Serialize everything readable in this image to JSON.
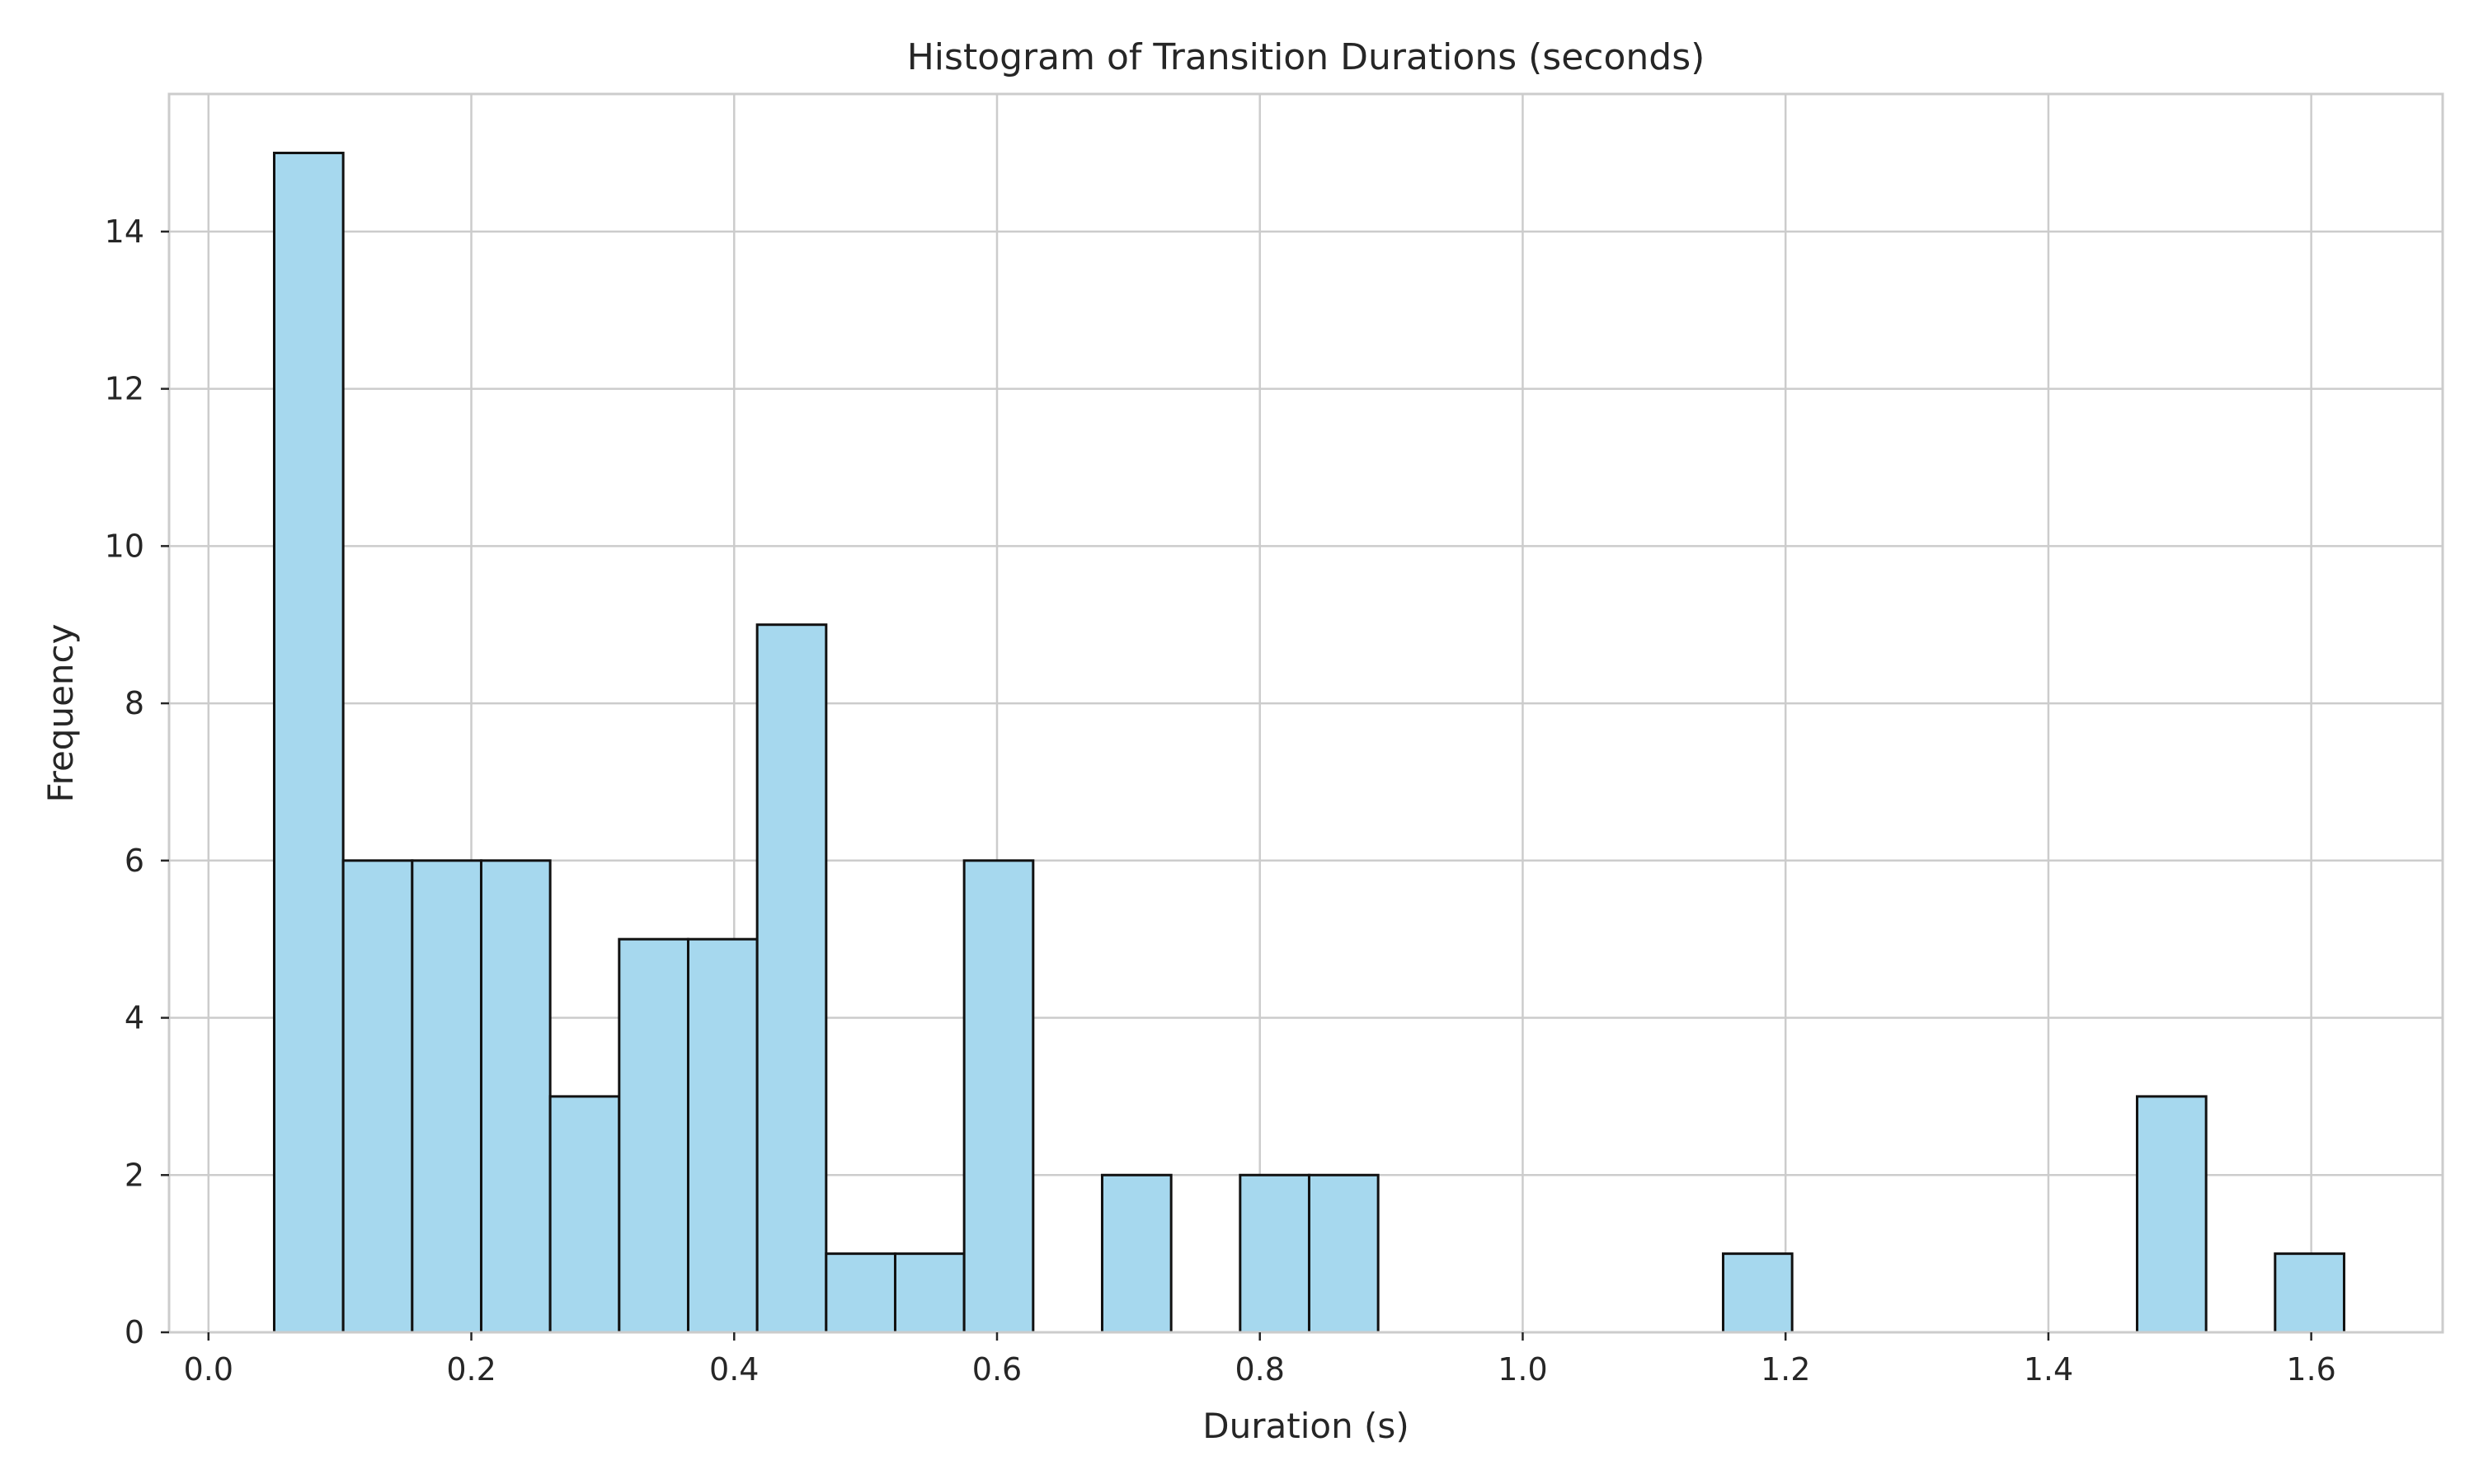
{
  "chart_data": {
    "type": "bar",
    "title": "Histogram of Transition Durations (seconds)",
    "xlabel": "Duration (s)",
    "ylabel": "Frequency",
    "xlim": [
      -0.03,
      1.7
    ],
    "ylim": [
      0,
      15.75
    ],
    "xticks": [
      0.0,
      0.2,
      0.4,
      0.6,
      0.8,
      1.0,
      1.2,
      1.4,
      1.6
    ],
    "xtick_labels": [
      "0.0",
      "0.2",
      "0.4",
      "0.6",
      "0.8",
      "1.0",
      "1.2",
      "1.4",
      "1.6"
    ],
    "yticks": [
      0,
      2,
      4,
      6,
      8,
      10,
      12,
      14
    ],
    "ytick_labels": [
      "0",
      "2",
      "4",
      "6",
      "8",
      "10",
      "12",
      "14"
    ],
    "grid": true,
    "bar_color": "#a6d8ee",
    "edge_color": "#111111",
    "bin_edges": [
      0.05,
      0.1025,
      0.155,
      0.2075,
      0.26,
      0.3125,
      0.365,
      0.4175,
      0.47,
      0.5225,
      0.575,
      0.6275,
      0.68,
      0.7325,
      0.785,
      0.8375,
      0.89,
      0.9425,
      0.995,
      1.0475,
      1.1,
      1.1525,
      1.205,
      1.2575,
      1.31,
      1.3625,
      1.415,
      1.4675,
      1.52,
      1.5725,
      1.625
    ],
    "values": [
      15,
      6,
      6,
      6,
      3,
      5,
      5,
      9,
      1,
      1,
      6,
      0,
      2,
      0,
      2,
      2,
      0,
      0,
      0,
      0,
      0,
      1,
      0,
      0,
      0,
      0,
      0,
      3,
      0,
      1
    ]
  }
}
